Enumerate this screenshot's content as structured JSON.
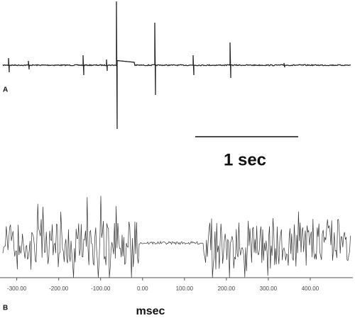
{
  "panel_a": {
    "label": "A",
    "scale_bar": "1 sec"
  },
  "chart_data": {
    "type": "line",
    "label": "B",
    "xlabel": "msec",
    "xlim": [
      -340,
      500
    ],
    "xticks": [
      {
        "value": -300,
        "label": "-300.00"
      },
      {
        "value": -200,
        "label": "-200.00"
      },
      {
        "value": -100,
        "label": "-100.00"
      },
      {
        "value": 0,
        "label": "0.00"
      },
      {
        "value": 100,
        "label": "100.00"
      },
      {
        "value": 200,
        "label": "200.00"
      },
      {
        "value": 300,
        "label": "300.00"
      },
      {
        "value": 400,
        "label": "400.00"
      }
    ]
  }
}
